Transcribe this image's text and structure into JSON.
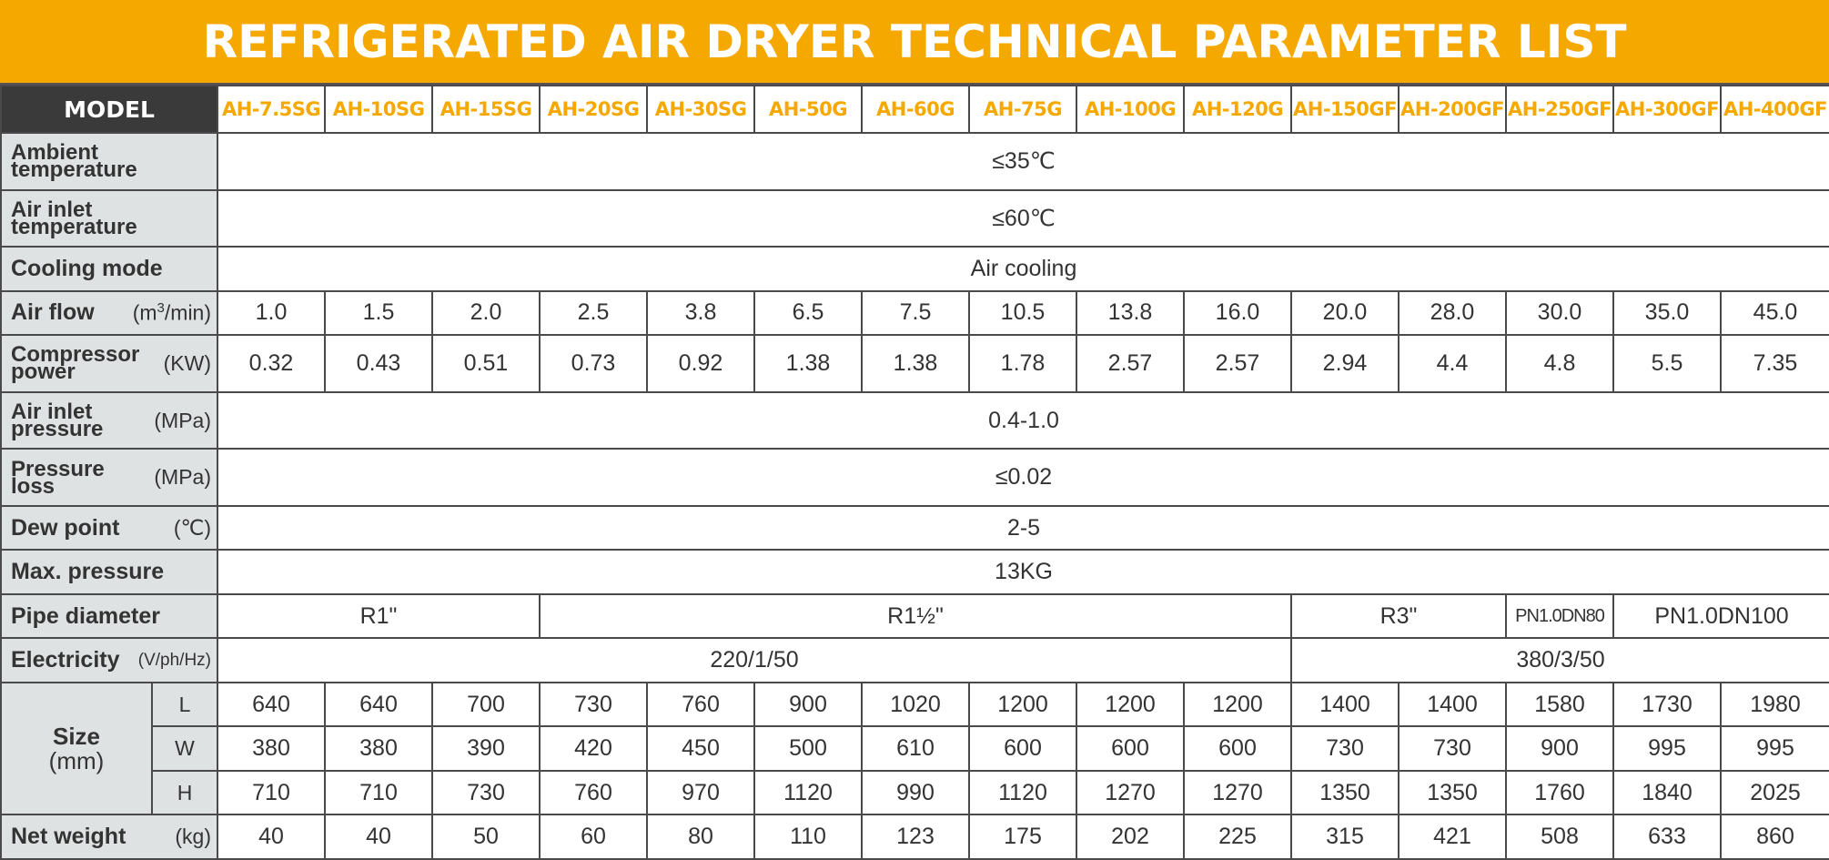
{
  "title": "REFRIGERATED AIR DRYER TECHNICAL PARAMETER LIST",
  "model_header": "MODEL",
  "models": [
    "AH-7.5SG",
    "AH-10SG",
    "AH-15SG",
    "AH-20SG",
    "AH-30SG",
    "AH-50G",
    "AH-60G",
    "AH-75G",
    "AH-100G",
    "AH-120G",
    "AH-150GF",
    "AH-200GF",
    "AH-250GF",
    "AH-300GF",
    "AH-400GF"
  ],
  "rows": {
    "ambient": {
      "label_1": "Ambient",
      "label_2": "temperature",
      "value": "≤35℃"
    },
    "inlet_temp": {
      "label_1": "Air inlet",
      "label_2": "temperature",
      "value": "≤60℃"
    },
    "cooling": {
      "label": "Cooling mode",
      "value": "Air cooling"
    },
    "airflow": {
      "label": "Air flow",
      "unit_pre": "(m",
      "unit_sup": "3",
      "unit_post": "/min)",
      "values": [
        "1.0",
        "1.5",
        "2.0",
        "2.5",
        "3.8",
        "6.5",
        "7.5",
        "10.5",
        "13.8",
        "16.0",
        "20.0",
        "28.0",
        "30.0",
        "35.0",
        "45.0"
      ]
    },
    "compressor": {
      "label_1": "Compressor",
      "label_2": "power",
      "unit": "(KW)",
      "values": [
        "0.32",
        "0.43",
        "0.51",
        "0.73",
        "0.92",
        "1.38",
        "1.38",
        "1.78",
        "2.57",
        "2.57",
        "2.94",
        "4.4",
        "4.8",
        "5.5",
        "7.35"
      ]
    },
    "inlet_pressure": {
      "label_1": "Air inlet",
      "label_2": "pressure",
      "unit": "(MPa)",
      "value": "0.4-1.0"
    },
    "pressure_loss": {
      "label_1": "Pressure",
      "label_2": "loss",
      "unit": "(MPa)",
      "value": "≤0.02"
    },
    "dew": {
      "label": "Dew point",
      "unit": "(℃)",
      "value": "2-5"
    },
    "max_pressure": {
      "label": "Max. pressure",
      "value": "13KG"
    },
    "pipe": {
      "label": "Pipe diameter",
      "values": [
        "R1\"",
        "R1½\"",
        "R3\"",
        "PN1.0DN80",
        "PN1.0DN100"
      ]
    },
    "electricity": {
      "label": "Electricity",
      "unit": "(V/ph/Hz)",
      "values": [
        "220/1/50",
        "380/3/50"
      ]
    },
    "size": {
      "label_1": "Size",
      "label_2": "(mm)",
      "L": {
        "label": "L",
        "values": [
          "640",
          "640",
          "700",
          "730",
          "760",
          "900",
          "1020",
          "1200",
          "1200",
          "1200",
          "1400",
          "1400",
          "1580",
          "1730",
          "1980"
        ]
      },
      "W": {
        "label": "W",
        "values": [
          "380",
          "380",
          "390",
          "420",
          "450",
          "500",
          "610",
          "600",
          "600",
          "600",
          "730",
          "730",
          "900",
          "995",
          "995"
        ]
      },
      "H": {
        "label": "H",
        "values": [
          "710",
          "710",
          "730",
          "760",
          "970",
          "1120",
          "990",
          "1120",
          "1270",
          "1270",
          "1350",
          "1350",
          "1760",
          "1840",
          "2025"
        ]
      }
    },
    "weight": {
      "label": "Net weight",
      "unit": "(kg)",
      "values": [
        "40",
        "40",
        "50",
        "60",
        "80",
        "110",
        "123",
        "175",
        "202",
        "225",
        "315",
        "421",
        "508",
        "633",
        "860"
      ]
    }
  }
}
